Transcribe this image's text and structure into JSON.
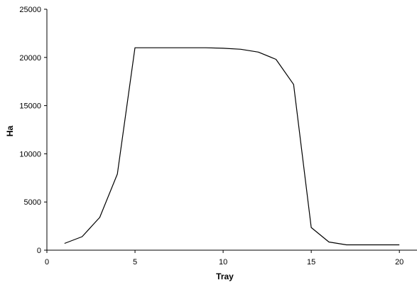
{
  "chart_data": {
    "type": "line",
    "title": "",
    "xlabel": "Tray",
    "ylabel": "Ha",
    "xlim": [
      0,
      21
    ],
    "ylim": [
      0,
      25000
    ],
    "xticks": [
      0,
      5,
      10,
      15,
      20
    ],
    "yticks": [
      0,
      5000,
      10000,
      15000,
      20000,
      25000
    ],
    "xtick_labels": [
      "0",
      "5",
      "10",
      "15",
      "20"
    ],
    "ytick_labels": [
      "0",
      "5000",
      "10000",
      "15000",
      "20000",
      "25000"
    ],
    "grid": false,
    "legend": "none",
    "series": [
      {
        "x": [
          1,
          2,
          3,
          4,
          5,
          6,
          7,
          8,
          9,
          10,
          11,
          12,
          13,
          14,
          15,
          16,
          17,
          18,
          19,
          20
        ],
        "y": [
          700,
          1400,
          3400,
          7900,
          21000,
          21000,
          21000,
          21000,
          21000,
          20950,
          20850,
          20550,
          19800,
          17200,
          2350,
          850,
          550,
          550,
          550,
          550
        ],
        "color": "#000000"
      }
    ]
  }
}
